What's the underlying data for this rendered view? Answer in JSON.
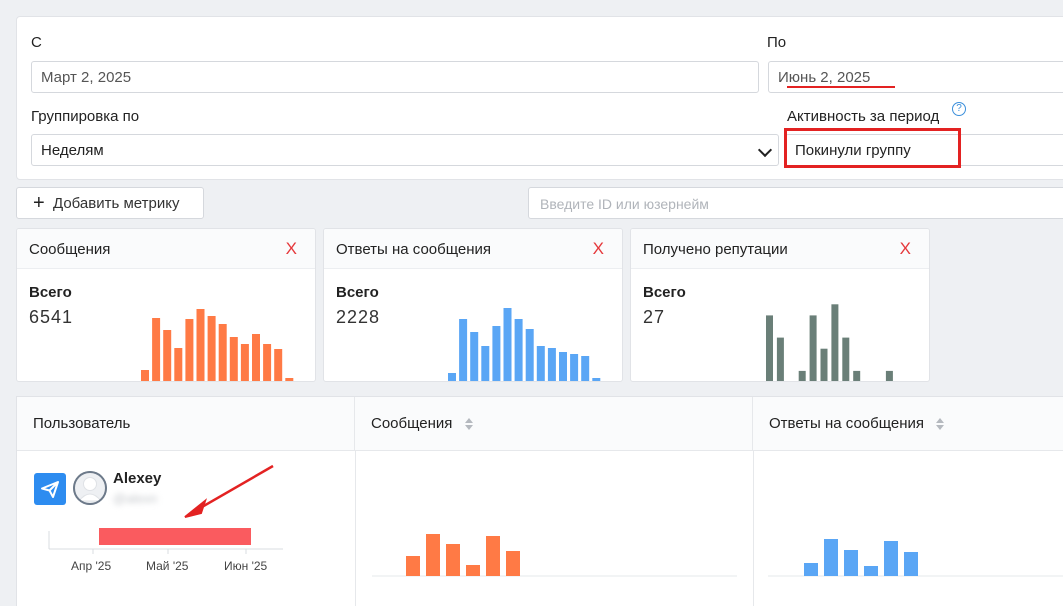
{
  "filters": {
    "from_label": "С",
    "from_value": "Март 2, 2025",
    "to_label": "По",
    "to_value": "Июнь 2, 2025",
    "group_label": "Группировка по",
    "group_value": "Неделям",
    "activity_label": "Активность за период",
    "activity_help": "?",
    "activity_value": "Покинули группу"
  },
  "toolbar": {
    "add_metric_icon": "+",
    "add_metric_label": "Добавить метрику",
    "search_placeholder": "Введите ID или юзернейм"
  },
  "metrics": [
    {
      "title": "Сообщения",
      "close": "X",
      "total_label": "Всего",
      "total": "6541",
      "color": "#ff7a45",
      "bars": [
        12,
        64,
        52,
        34,
        63,
        73,
        66,
        58,
        45,
        38,
        48,
        38,
        33,
        4
      ]
    },
    {
      "title": "Ответы на сообщения",
      "close": "X",
      "total_label": "Всего",
      "total": "2228",
      "color": "#5aa6f5",
      "bars": [
        9,
        63,
        50,
        36,
        56,
        74,
        63,
        53,
        36,
        34,
        30,
        28,
        26,
        4
      ]
    },
    {
      "title": "Получено репутации",
      "close": "X",
      "total_label": "Всего",
      "total": "27",
      "color": "#6a7f78",
      "bars": [
        6,
        4,
        0,
        1,
        6,
        3,
        7,
        4,
        1,
        0,
        0,
        1
      ]
    }
  ],
  "table": {
    "headers": [
      "Пользователь",
      "Сообщения",
      "Ответы на сообщения"
    ],
    "row": {
      "name": "Alexey",
      "handle": "@alexn",
      "timeline": {
        "ticks": [
          "Апр '25",
          "Май '25",
          "Июн '25"
        ],
        "bar_color": "#fa5b5f"
      },
      "messages_bars": [
        20,
        42,
        32,
        11,
        40,
        25
      ],
      "messages_color": "#ff7a45",
      "replies_bars": [
        13,
        37,
        26,
        10,
        35,
        24
      ],
      "replies_color": "#5aa6f5"
    }
  }
}
